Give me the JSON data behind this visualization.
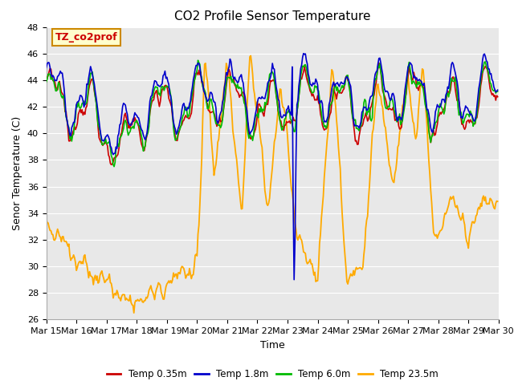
{
  "title": "CO2 Profile Sensor Temperature",
  "xlabel": "Time",
  "ylabel": "Senor Temperature (C)",
  "ylim": [
    26,
    48
  ],
  "yticks": [
    26,
    28,
    30,
    32,
    34,
    36,
    38,
    40,
    42,
    44,
    46,
    48
  ],
  "x_labels": [
    "Mar 15",
    "Mar 16",
    "Mar 17",
    "Mar 18",
    "Mar 19",
    "Mar 20",
    "Mar 21",
    "Mar 22",
    "Mar 23",
    "Mar 24",
    "Mar 25",
    "Mar 26",
    "Mar 27",
    "Mar 28",
    "Mar 29",
    "Mar 30"
  ],
  "colors": {
    "temp035": "#cc0000",
    "temp18": "#0000cc",
    "temp60": "#00bb00",
    "temp235": "#ffaa00"
  },
  "legend_labels": [
    "Temp 0.35m",
    "Temp 1.8m",
    "Temp 6.0m",
    "Temp 23.5m"
  ],
  "annotation_text": "TZ_co2prof",
  "annotation_bg": "#ffffcc",
  "annotation_border": "#cc8800",
  "title_fontsize": 11,
  "axis_label_fontsize": 9,
  "tick_fontsize": 8
}
